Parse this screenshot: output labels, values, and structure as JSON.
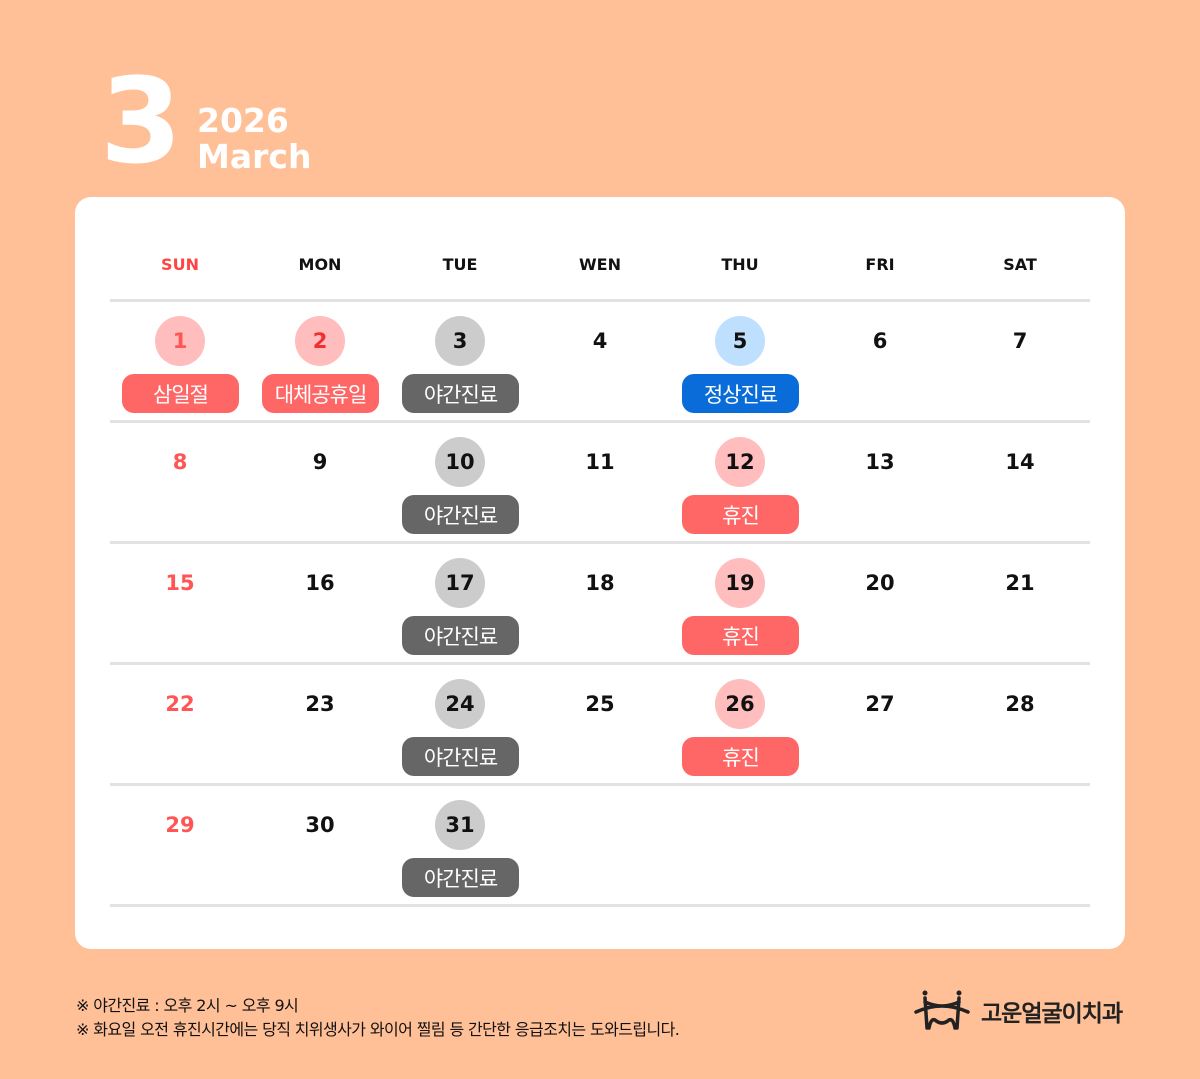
{
  "header": {
    "month_number": "3",
    "year": "2026",
    "month_name": "March"
  },
  "weekdays": [
    "SUN",
    "MON",
    "TUE",
    "WEN",
    "THU",
    "FRI",
    "SAT"
  ],
  "colors": {
    "holiday": "#FF6666",
    "night": "#666666",
    "regular": "#0A6CD8",
    "holiday_circle": "#FFBDBD",
    "night_circle": "#CCCCCC",
    "regular_circle": "#BFDFFF",
    "sunday_text": "#FF5555"
  },
  "weeks": [
    [
      {
        "day": "1",
        "circle": "holiday",
        "badge": "삼일절",
        "badge_type": "holiday"
      },
      {
        "day": "2",
        "circle": "holiday",
        "badge": "대체공휴일",
        "badge_type": "holiday"
      },
      {
        "day": "3",
        "circle": "night",
        "badge": "야간진료",
        "badge_type": "night"
      },
      {
        "day": "4"
      },
      {
        "day": "5",
        "circle": "regular",
        "badge": "정상진료",
        "badge_type": "regular"
      },
      {
        "day": "6"
      },
      {
        "day": "7"
      }
    ],
    [
      {
        "day": "8"
      },
      {
        "day": "9"
      },
      {
        "day": "10",
        "circle": "night",
        "badge": "야간진료",
        "badge_type": "night"
      },
      {
        "day": "11"
      },
      {
        "day": "12",
        "circle": "holiday",
        "badge": "휴진",
        "badge_type": "holiday"
      },
      {
        "day": "13"
      },
      {
        "day": "14"
      }
    ],
    [
      {
        "day": "15"
      },
      {
        "day": "16"
      },
      {
        "day": "17",
        "circle": "night",
        "badge": "야간진료",
        "badge_type": "night"
      },
      {
        "day": "18"
      },
      {
        "day": "19",
        "circle": "holiday",
        "badge": "휴진",
        "badge_type": "holiday"
      },
      {
        "day": "20"
      },
      {
        "day": "21"
      }
    ],
    [
      {
        "day": "22"
      },
      {
        "day": "23"
      },
      {
        "day": "24",
        "circle": "night",
        "badge": "야간진료",
        "badge_type": "night"
      },
      {
        "day": "25"
      },
      {
        "day": "26",
        "circle": "holiday",
        "badge": "휴진",
        "badge_type": "holiday"
      },
      {
        "day": "27"
      },
      {
        "day": "28"
      }
    ],
    [
      {
        "day": "29"
      },
      {
        "day": "30"
      },
      {
        "day": "31",
        "circle": "night",
        "badge": "야간진료",
        "badge_type": "night"
      }
    ]
  ],
  "notes": [
    "※ 야간진료 : 오후 2시 ~ 오후 9시",
    "※ 화요일 오전 휴진시간에는 당직 치위생사가 와이어 찔림 등 간단한 응급조치는 도와드립니다."
  ],
  "logo": {
    "name": "고운얼굴이치과",
    "icon": "smile-crown-icon"
  }
}
